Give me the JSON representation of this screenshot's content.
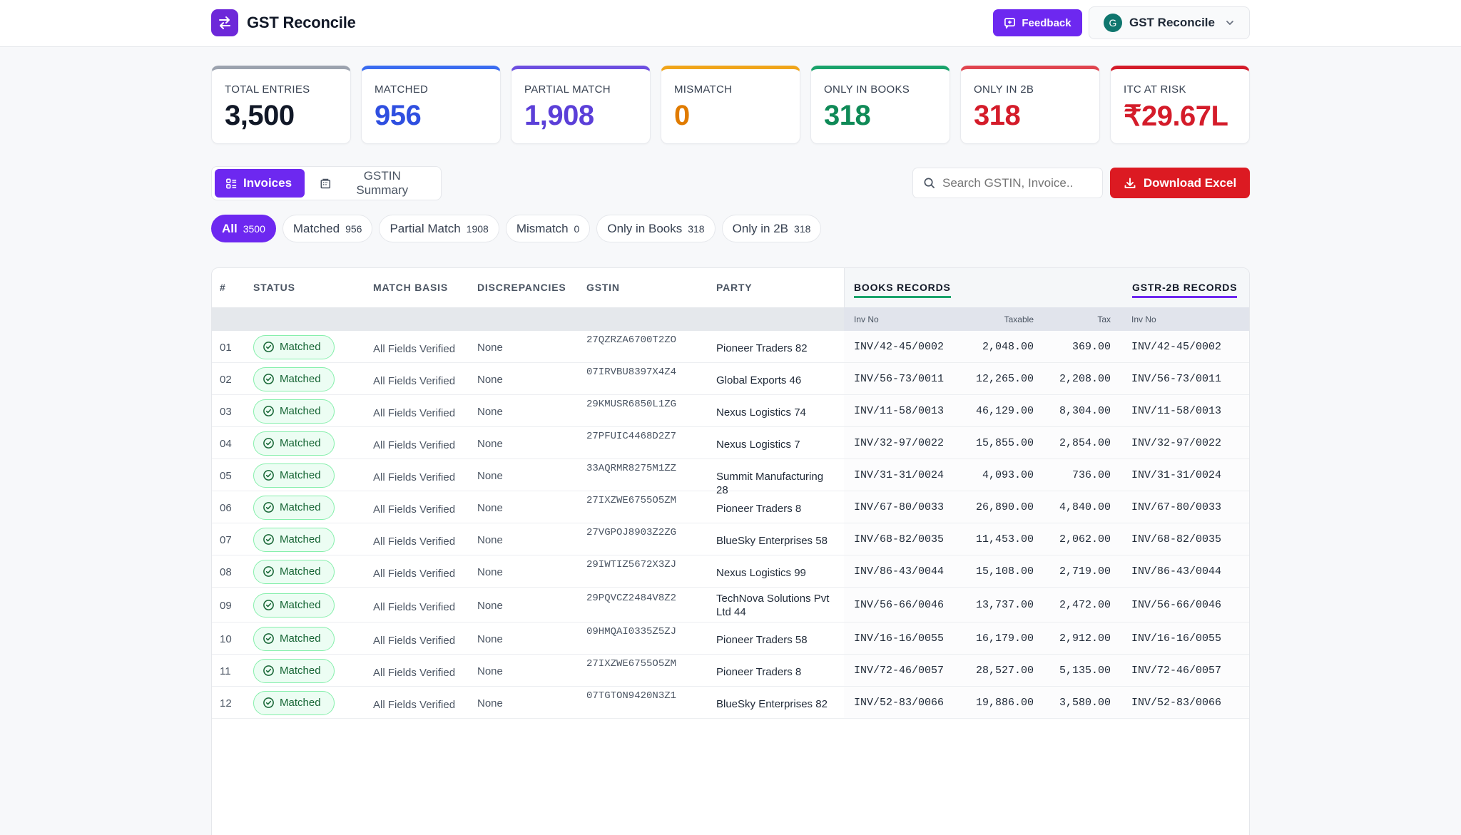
{
  "app": {
    "title": "GST Reconcile",
    "feedback_label": "Feedback",
    "account_initial": "G",
    "account_name": "GST Reconcile"
  },
  "colors": {
    "accent": "#6d28f0",
    "danger": "#dc1a22",
    "matched_green": "#166534"
  },
  "stats": [
    {
      "label": "TOTAL ENTRIES",
      "value": "3,500",
      "color": "#111827",
      "bar": "#9ca3af"
    },
    {
      "label": "MATCHED",
      "value": "956",
      "color": "#2f4fe0",
      "bar": "#3b6cf0"
    },
    {
      "label": "PARTIAL MATCH",
      "value": "1,908",
      "color": "#5b3fd8",
      "bar": "#6d4fe0"
    },
    {
      "label": "MISMATCH",
      "value": "0",
      "color": "#e07b00",
      "bar": "#f0a51a"
    },
    {
      "label": "ONLY IN BOOKS",
      "value": "318",
      "color": "#0f8a57",
      "bar": "#1aa36b"
    },
    {
      "label": "ONLY IN 2B",
      "value": "318",
      "color": "#d41c2a",
      "bar": "#e0454f"
    },
    {
      "label": "ITC AT RISK",
      "value": "₹29.67L",
      "color": "#d41c2a",
      "bar": "#d41c2a"
    }
  ],
  "views": {
    "invoices_label": "Invoices",
    "summary_label": "GSTIN Summary"
  },
  "search": {
    "placeholder": "Search GSTIN, Invoice..",
    "value": ""
  },
  "download_label": "Download Excel",
  "filters": [
    {
      "label": "All",
      "count": "3500",
      "active": true
    },
    {
      "label": "Matched",
      "count": "956"
    },
    {
      "label": "Partial Match",
      "count": "1908"
    },
    {
      "label": "Mismatch",
      "count": "0"
    },
    {
      "label": "Only in Books",
      "count": "318"
    },
    {
      "label": "Only in 2B",
      "count": "318"
    }
  ],
  "table": {
    "headers": {
      "num": "#",
      "status": "STATUS",
      "basis": "MATCH BASIS",
      "discrepancies": "DISCREPANCIES",
      "gstin": "GSTIN",
      "party": "PARTY",
      "books": "BOOKS RECORDS",
      "gstr2b": "GSTR-2B RECORDS"
    },
    "subheaders": {
      "books_inv": "Inv No",
      "books_taxable": "Taxable",
      "books_tax": "Tax",
      "gstr_inv": "Inv No"
    },
    "rows": [
      {
        "num": "01",
        "status": "Matched",
        "basis": "All Fields Verified",
        "disc": "None",
        "gstin": "27QZRZA6700T2ZO",
        "party": "Pioneer Traders 82",
        "inv": "INV/42-45/0002",
        "taxable": "2,048.00",
        "tax": "369.00",
        "inv2": "INV/42-45/0002"
      },
      {
        "num": "02",
        "status": "Matched",
        "basis": "All Fields Verified",
        "disc": "None",
        "gstin": "07IRVBU8397X4Z4",
        "party": "Global Exports 46",
        "inv": "INV/56-73/0011",
        "taxable": "12,265.00",
        "tax": "2,208.00",
        "inv2": "INV/56-73/0011"
      },
      {
        "num": "03",
        "status": "Matched",
        "basis": "All Fields Verified",
        "disc": "None",
        "gstin": "29KMUSR6850L1ZG",
        "party": "Nexus Logistics 74",
        "inv": "INV/11-58/0013",
        "taxable": "46,129.00",
        "tax": "8,304.00",
        "inv2": "INV/11-58/0013"
      },
      {
        "num": "04",
        "status": "Matched",
        "basis": "All Fields Verified",
        "disc": "None",
        "gstin": "27PFUIC4468D2Z7",
        "party": "Nexus Logistics 7",
        "inv": "INV/32-97/0022",
        "taxable": "15,855.00",
        "tax": "2,854.00",
        "inv2": "INV/32-97/0022"
      },
      {
        "num": "05",
        "status": "Matched",
        "basis": "All Fields Verified",
        "disc": "None",
        "gstin": "33AQRMR8275M1ZZ",
        "party": "Summit Manufacturing 28",
        "inv": "INV/31-31/0024",
        "taxable": "4,093.00",
        "tax": "736.00",
        "inv2": "INV/31-31/0024"
      },
      {
        "num": "06",
        "status": "Matched",
        "basis": "All Fields Verified",
        "disc": "None",
        "gstin": "27IXZWE6755O5ZM",
        "party": "Pioneer Traders 8",
        "inv": "INV/67-80/0033",
        "taxable": "26,890.00",
        "tax": "4,840.00",
        "inv2": "INV/67-80/0033"
      },
      {
        "num": "07",
        "status": "Matched",
        "basis": "All Fields Verified",
        "disc": "None",
        "gstin": "27VGPOJ8903Z2ZG",
        "party": "BlueSky Enterprises 58",
        "inv": "INV/68-82/0035",
        "taxable": "11,453.00",
        "tax": "2,062.00",
        "inv2": "INV/68-82/0035"
      },
      {
        "num": "08",
        "status": "Matched",
        "basis": "All Fields Verified",
        "disc": "None",
        "gstin": "29IWTIZ5672X3ZJ",
        "party": "Nexus Logistics 99",
        "inv": "INV/86-43/0044",
        "taxable": "15,108.00",
        "tax": "2,719.00",
        "inv2": "INV/86-43/0044"
      },
      {
        "num": "09",
        "status": "Matched",
        "basis": "All Fields Verified",
        "disc": "None",
        "gstin": "29PQVCZ2484V8Z2",
        "party": "TechNova Solutions Pvt Ltd 44",
        "inv": "INV/56-66/0046",
        "taxable": "13,737.00",
        "tax": "2,472.00",
        "inv2": "INV/56-66/0046"
      },
      {
        "num": "10",
        "status": "Matched",
        "basis": "All Fields Verified",
        "disc": "None",
        "gstin": "09HMQAI0335Z5ZJ",
        "party": "Pioneer Traders 58",
        "inv": "INV/16-16/0055",
        "taxable": "16,179.00",
        "tax": "2,912.00",
        "inv2": "INV/16-16/0055"
      },
      {
        "num": "11",
        "status": "Matched",
        "basis": "All Fields Verified",
        "disc": "None",
        "gstin": "27IXZWE6755O5ZM",
        "party": "Pioneer Traders 8",
        "inv": "INV/72-46/0057",
        "taxable": "28,527.00",
        "tax": "5,135.00",
        "inv2": "INV/72-46/0057"
      },
      {
        "num": "12",
        "status": "Matched",
        "basis": "All Fields Verified",
        "disc": "None",
        "gstin": "07TGTON9420N3Z1",
        "party": "BlueSky Enterprises 82",
        "inv": "INV/52-83/0066",
        "taxable": "19,886.00",
        "tax": "3,580.00",
        "inv2": "INV/52-83/0066"
      }
    ]
  }
}
